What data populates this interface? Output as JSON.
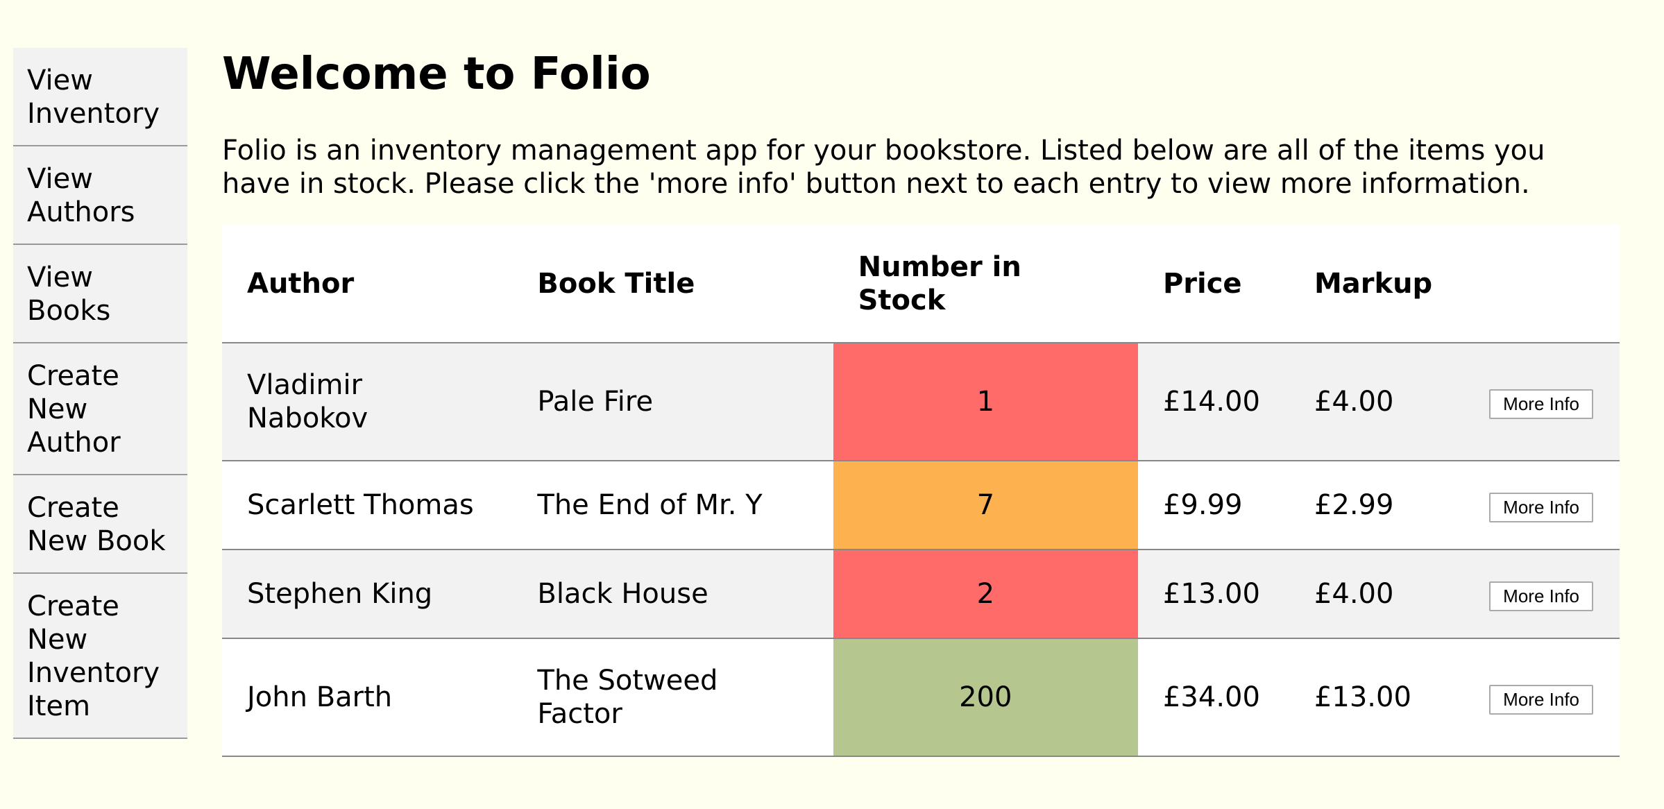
{
  "sidebar": {
    "items": [
      {
        "label": "View Inventory"
      },
      {
        "label": "View Authors"
      },
      {
        "label": "View Books"
      },
      {
        "label": "Create New Author"
      },
      {
        "label": "Create New Book"
      },
      {
        "label": "Create New Inventory Item"
      }
    ]
  },
  "main": {
    "title": "Welcome to Folio",
    "intro": "Folio is an inventory management app for your bookstore. Listed below are all of the items you have in stock. Please click the 'more info' button next to each entry to view more information."
  },
  "table": {
    "headers": {
      "author": "Author",
      "title": "Book Title",
      "stock": "Number in Stock",
      "price": "Price",
      "markup": "Markup"
    },
    "rows": [
      {
        "author": "Vladimir Nabokov",
        "title": "Pale Fire",
        "stock": "1",
        "stock_color": "#ff6b68",
        "price": "£14.00",
        "markup": "£4.00",
        "button": "More Info"
      },
      {
        "author": "Scarlett Thomas",
        "title": "The End of Mr. Y",
        "stock": "7",
        "stock_color": "#fdb14f",
        "price": "£9.99",
        "markup": "£2.99",
        "button": "More Info"
      },
      {
        "author": "Stephen King",
        "title": "Black House",
        "stock": "2",
        "stock_color": "#ff6b68",
        "price": "£13.00",
        "markup": "£4.00",
        "button": "More Info"
      },
      {
        "author": "John Barth",
        "title": "The Sotweed Factor",
        "stock": "200",
        "stock_color": "#b6c68f",
        "price": "£34.00",
        "markup": "£13.00",
        "button": "More Info"
      }
    ]
  },
  "colors": {
    "page_background": "#fffff0",
    "sidebar_background": "#f2f2f2",
    "stock_low": "#ff6b68",
    "stock_medium": "#fdb14f",
    "stock_high": "#b6c68f"
  }
}
